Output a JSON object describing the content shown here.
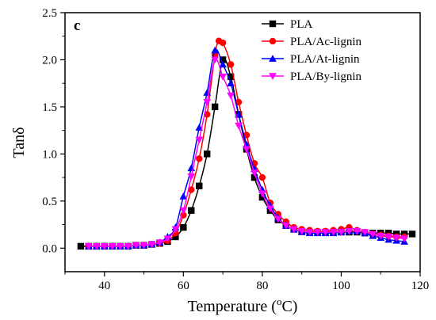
{
  "chart_data": {
    "type": "line",
    "panel_label": "c",
    "xlabel": "Temperature (",
    "xlabel_sup": "o",
    "xlabel_unit": "C)",
    "ylabel": "Tanδ",
    "xlim": [
      30,
      120
    ],
    "ylim": [
      -0.25,
      2.5
    ],
    "xticks": [
      40,
      60,
      80,
      100,
      120
    ],
    "yticks": [
      0.0,
      0.5,
      1.0,
      1.5,
      2.0,
      2.5
    ],
    "ytick_labels": [
      "0.0",
      "0.5",
      "1.0",
      "1.5",
      "2.0",
      "2.5"
    ],
    "legend_position": "top-right",
    "grid": false,
    "series": [
      {
        "name": "PLA",
        "color": "#000000",
        "marker": "square",
        "x": [
          34,
          36,
          38,
          40,
          42,
          44,
          46,
          48,
          50,
          52,
          54,
          56,
          58,
          60,
          62,
          64,
          66,
          68,
          70,
          72,
          74,
          76,
          78,
          80,
          82,
          84,
          86,
          88,
          90,
          92,
          94,
          96,
          98,
          100,
          102,
          104,
          106,
          108,
          110,
          112,
          114,
          116,
          118
        ],
        "values": [
          0.02,
          0.02,
          0.02,
          0.02,
          0.02,
          0.02,
          0.02,
          0.03,
          0.03,
          0.04,
          0.05,
          0.07,
          0.12,
          0.22,
          0.4,
          0.66,
          1.0,
          1.5,
          2.0,
          1.82,
          1.42,
          1.05,
          0.75,
          0.54,
          0.4,
          0.3,
          0.24,
          0.2,
          0.18,
          0.17,
          0.17,
          0.17,
          0.17,
          0.17,
          0.17,
          0.17,
          0.16,
          0.16,
          0.16,
          0.16,
          0.15,
          0.15,
          0.15
        ]
      },
      {
        "name": "PLA/Ac-lignin",
        "color": "#ff0000",
        "marker": "circle",
        "x": [
          36,
          38,
          40,
          42,
          44,
          46,
          48,
          50,
          52,
          54,
          56,
          58,
          60,
          62,
          64,
          66,
          68,
          69,
          70,
          72,
          74,
          76,
          78,
          80,
          82,
          84,
          86,
          88,
          90,
          92,
          94,
          96,
          98,
          100,
          102,
          104,
          106,
          108,
          110,
          112,
          114,
          116
        ],
        "values": [
          0.02,
          0.02,
          0.02,
          0.02,
          0.02,
          0.02,
          0.03,
          0.03,
          0.04,
          0.05,
          0.08,
          0.16,
          0.35,
          0.62,
          0.95,
          1.42,
          2.05,
          2.2,
          2.18,
          1.95,
          1.55,
          1.2,
          0.9,
          0.75,
          0.48,
          0.36,
          0.28,
          0.22,
          0.2,
          0.19,
          0.18,
          0.18,
          0.19,
          0.2,
          0.22,
          0.19,
          0.17,
          0.15,
          0.14,
          0.13,
          0.12,
          0.12
        ]
      },
      {
        "name": "PLA/At-lignin",
        "color": "#0000ff",
        "marker": "triangle-up",
        "x": [
          36,
          38,
          40,
          42,
          44,
          46,
          48,
          50,
          52,
          54,
          56,
          58,
          60,
          62,
          64,
          66,
          68,
          70,
          72,
          74,
          76,
          78,
          80,
          82,
          84,
          86,
          88,
          90,
          92,
          94,
          96,
          98,
          100,
          102,
          104,
          106,
          108,
          110,
          112,
          114,
          116
        ],
        "values": [
          0.02,
          0.02,
          0.02,
          0.02,
          0.02,
          0.02,
          0.03,
          0.03,
          0.04,
          0.06,
          0.12,
          0.22,
          0.55,
          0.85,
          1.28,
          1.65,
          2.1,
          1.95,
          1.75,
          1.42,
          1.1,
          0.84,
          0.62,
          0.45,
          0.32,
          0.24,
          0.2,
          0.17,
          0.16,
          0.16,
          0.16,
          0.16,
          0.17,
          0.18,
          0.18,
          0.16,
          0.13,
          0.11,
          0.09,
          0.08,
          0.07
        ]
      },
      {
        "name": "PLA/By-lignin",
        "color": "#ff00ff",
        "marker": "triangle-down",
        "x": [
          36,
          38,
          40,
          42,
          44,
          46,
          48,
          50,
          52,
          54,
          56,
          58,
          60,
          62,
          64,
          66,
          68,
          70,
          72,
          74,
          76,
          78,
          80,
          82,
          84,
          86,
          88,
          90,
          92,
          94,
          96,
          98,
          100,
          102,
          104,
          106,
          108,
          110,
          112,
          114,
          116
        ],
        "values": [
          0.02,
          0.02,
          0.02,
          0.02,
          0.02,
          0.02,
          0.03,
          0.03,
          0.04,
          0.06,
          0.1,
          0.2,
          0.4,
          0.76,
          1.15,
          1.55,
          2.0,
          1.82,
          1.62,
          1.3,
          1.05,
          0.8,
          0.58,
          0.42,
          0.31,
          0.24,
          0.2,
          0.18,
          0.17,
          0.17,
          0.17,
          0.17,
          0.17,
          0.18,
          0.18,
          0.17,
          0.15,
          0.13,
          0.12,
          0.11,
          0.1
        ]
      }
    ]
  }
}
